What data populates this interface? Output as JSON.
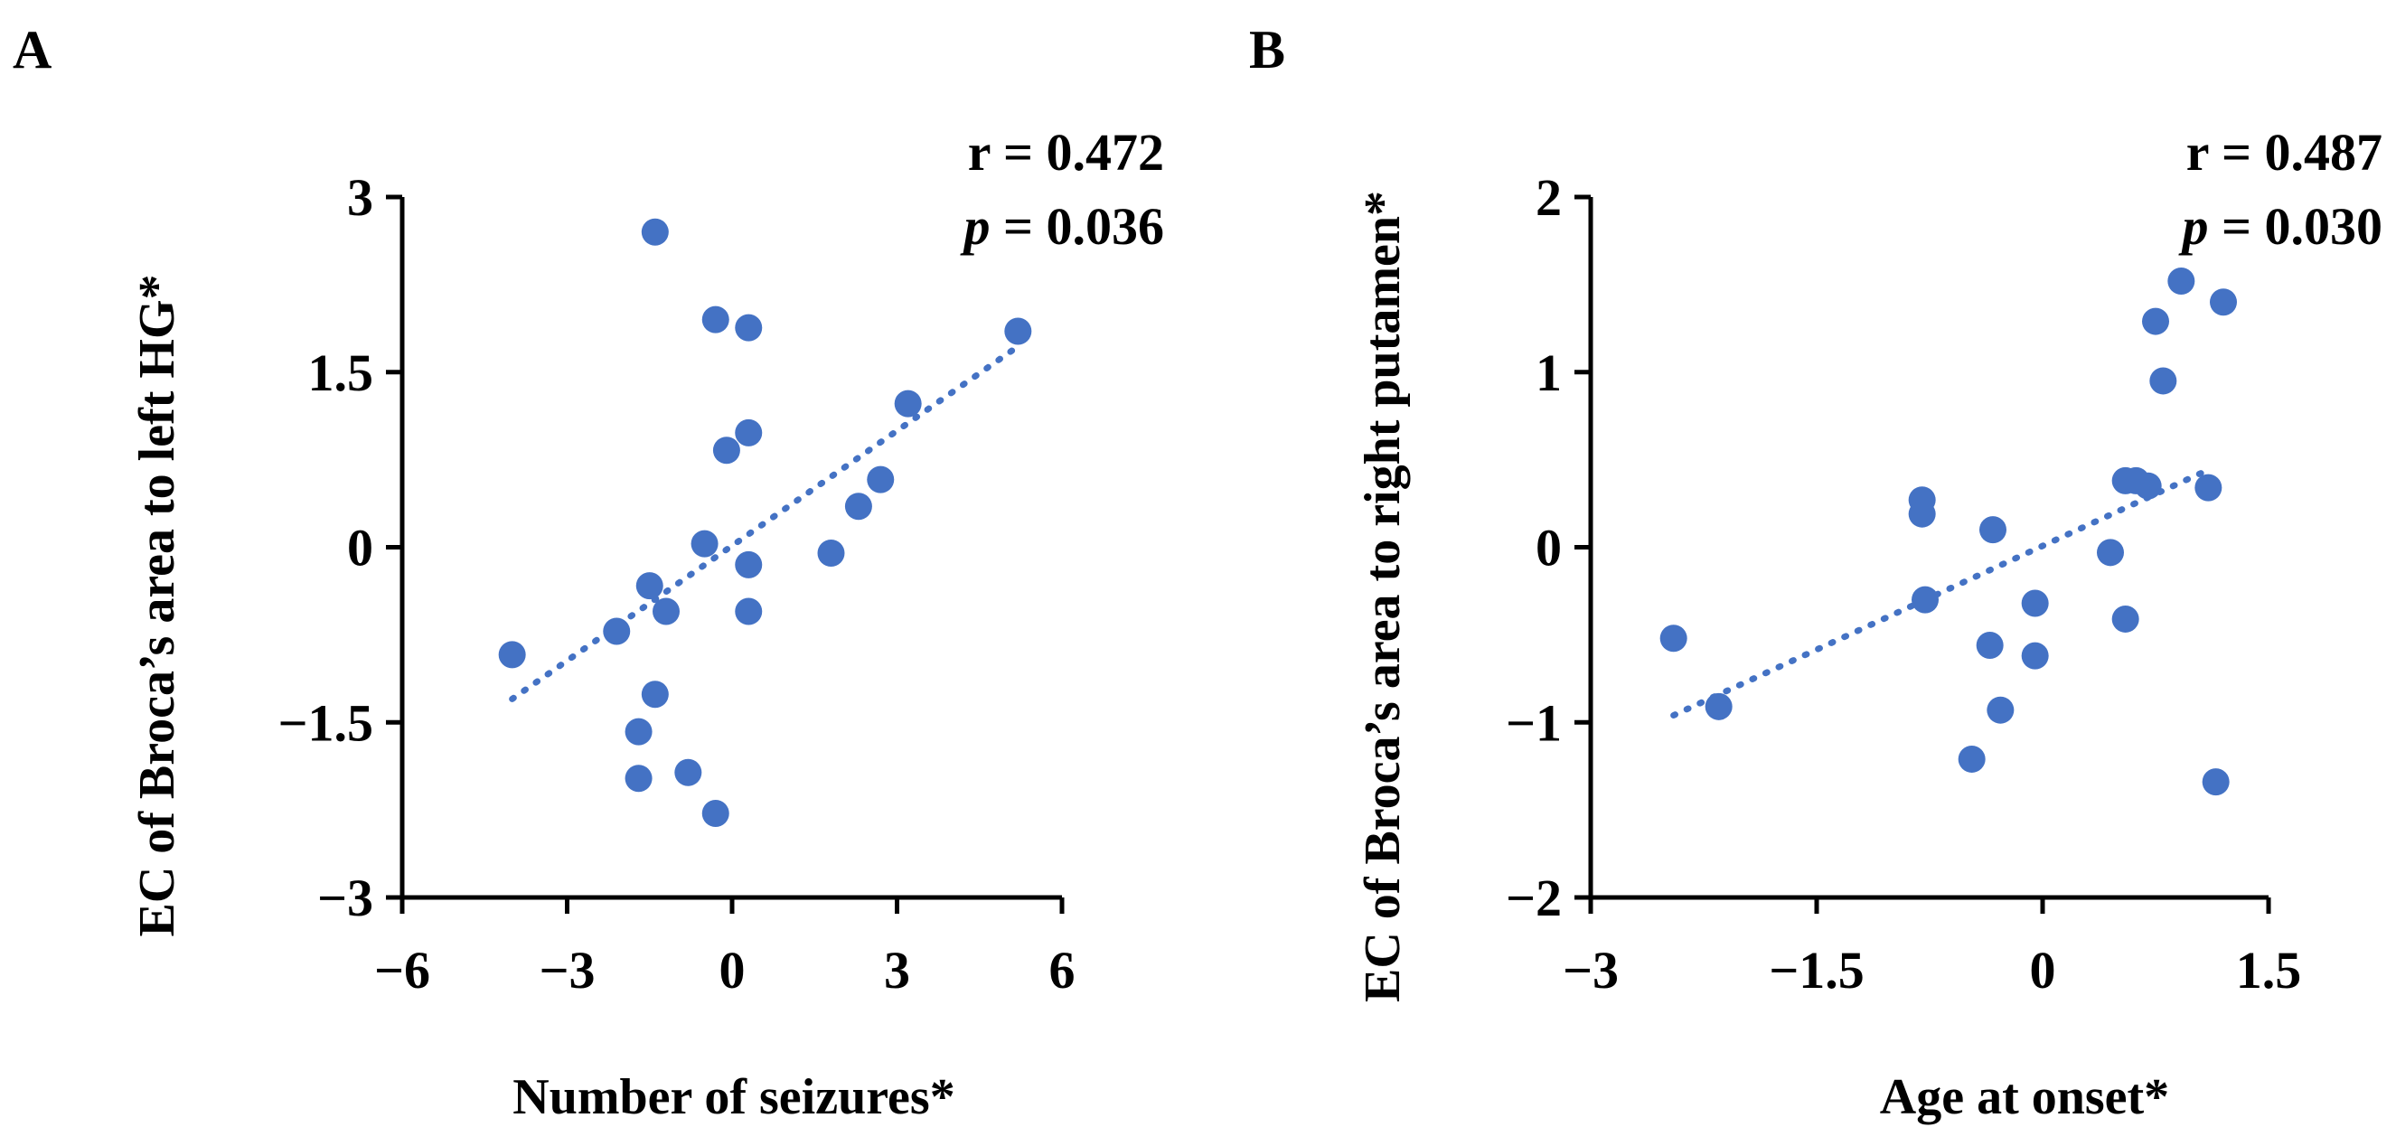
{
  "colors": {
    "point": "#4472C4",
    "trend": "#4472C4",
    "axis": "#000000"
  },
  "chart_data": [
    {
      "type": "scatter",
      "panel_label": "A",
      "xlabel": "Number of seizures*",
      "ylabel": "EC of Broca’s area to left HG*",
      "xlim": [
        -6,
        6
      ],
      "ylim": [
        -3,
        3
      ],
      "xticks": [
        -6,
        -3,
        0,
        3,
        6
      ],
      "xtick_labels": [
        "−6",
        "−3",
        "0",
        "3",
        "6"
      ],
      "yticks": [
        -3,
        -1.5,
        0,
        1.5,
        3
      ],
      "ytick_labels": [
        "−3",
        "−1.5",
        "0",
        "1.5",
        "3"
      ],
      "stat_r": "r = 0.472",
      "stat_p_label": "p",
      "stat_p_value": " = 0.036",
      "trend": {
        "x": [
          -4.0,
          5.2
        ],
        "y": [
          -1.3,
          1.72
        ]
      },
      "points": {
        "x": [
          -1.4,
          -0.3,
          0.3,
          5.2,
          3.2,
          0.3,
          -0.1,
          2.7,
          2.3,
          -0.5,
          1.8,
          0.3,
          -1.5,
          -2.1,
          -1.2,
          0.3,
          -4.0,
          -1.4,
          -1.7,
          -1.7,
          -0.8,
          -0.3
        ],
        "y": [
          2.7,
          1.95,
          1.88,
          1.85,
          1.23,
          0.98,
          0.83,
          0.58,
          0.35,
          0.03,
          -0.05,
          -0.15,
          -0.33,
          -0.72,
          -0.55,
          -0.55,
          -0.92,
          -1.26,
          -1.58,
          -1.98,
          -1.93,
          -2.28
        ]
      }
    },
    {
      "type": "scatter",
      "panel_label": "B",
      "xlabel": "Age at onset*",
      "ylabel": "EC of Broca’s area to  right putamen*",
      "xlim": [
        -3,
        1.5
      ],
      "ylim": [
        -2,
        2
      ],
      "xticks": [
        -3,
        -1.5,
        0,
        1.5
      ],
      "xtick_labels": [
        "−3",
        "−1.5",
        "0",
        "1.5"
      ],
      "yticks": [
        -2,
        -1,
        0,
        1,
        2
      ],
      "ytick_labels": [
        "−2",
        "−1",
        "0",
        "1",
        "2"
      ],
      "stat_r": "r = 0.487",
      "stat_p_label": "p",
      "stat_p_value": " = 0.030",
      "trend": {
        "x": [
          -2.45,
          1.12
        ],
        "y": [
          -0.96,
          0.45
        ]
      },
      "points": {
        "x": [
          0.92,
          1.2,
          0.75,
          0.8,
          0.55,
          0.62,
          0.7,
          1.1,
          -0.8,
          -0.8,
          -0.33,
          0.45,
          -0.78,
          -0.05,
          0.55,
          -2.45,
          -0.35,
          -0.05,
          -2.15,
          -0.28,
          -0.47,
          1.15
        ],
        "y": [
          1.52,
          1.4,
          1.29,
          0.95,
          0.38,
          0.38,
          0.35,
          0.34,
          0.27,
          0.19,
          0.1,
          -0.03,
          -0.3,
          -0.32,
          -0.41,
          -0.52,
          -0.56,
          -0.62,
          -0.91,
          -0.93,
          -1.21,
          -1.34
        ]
      }
    }
  ]
}
